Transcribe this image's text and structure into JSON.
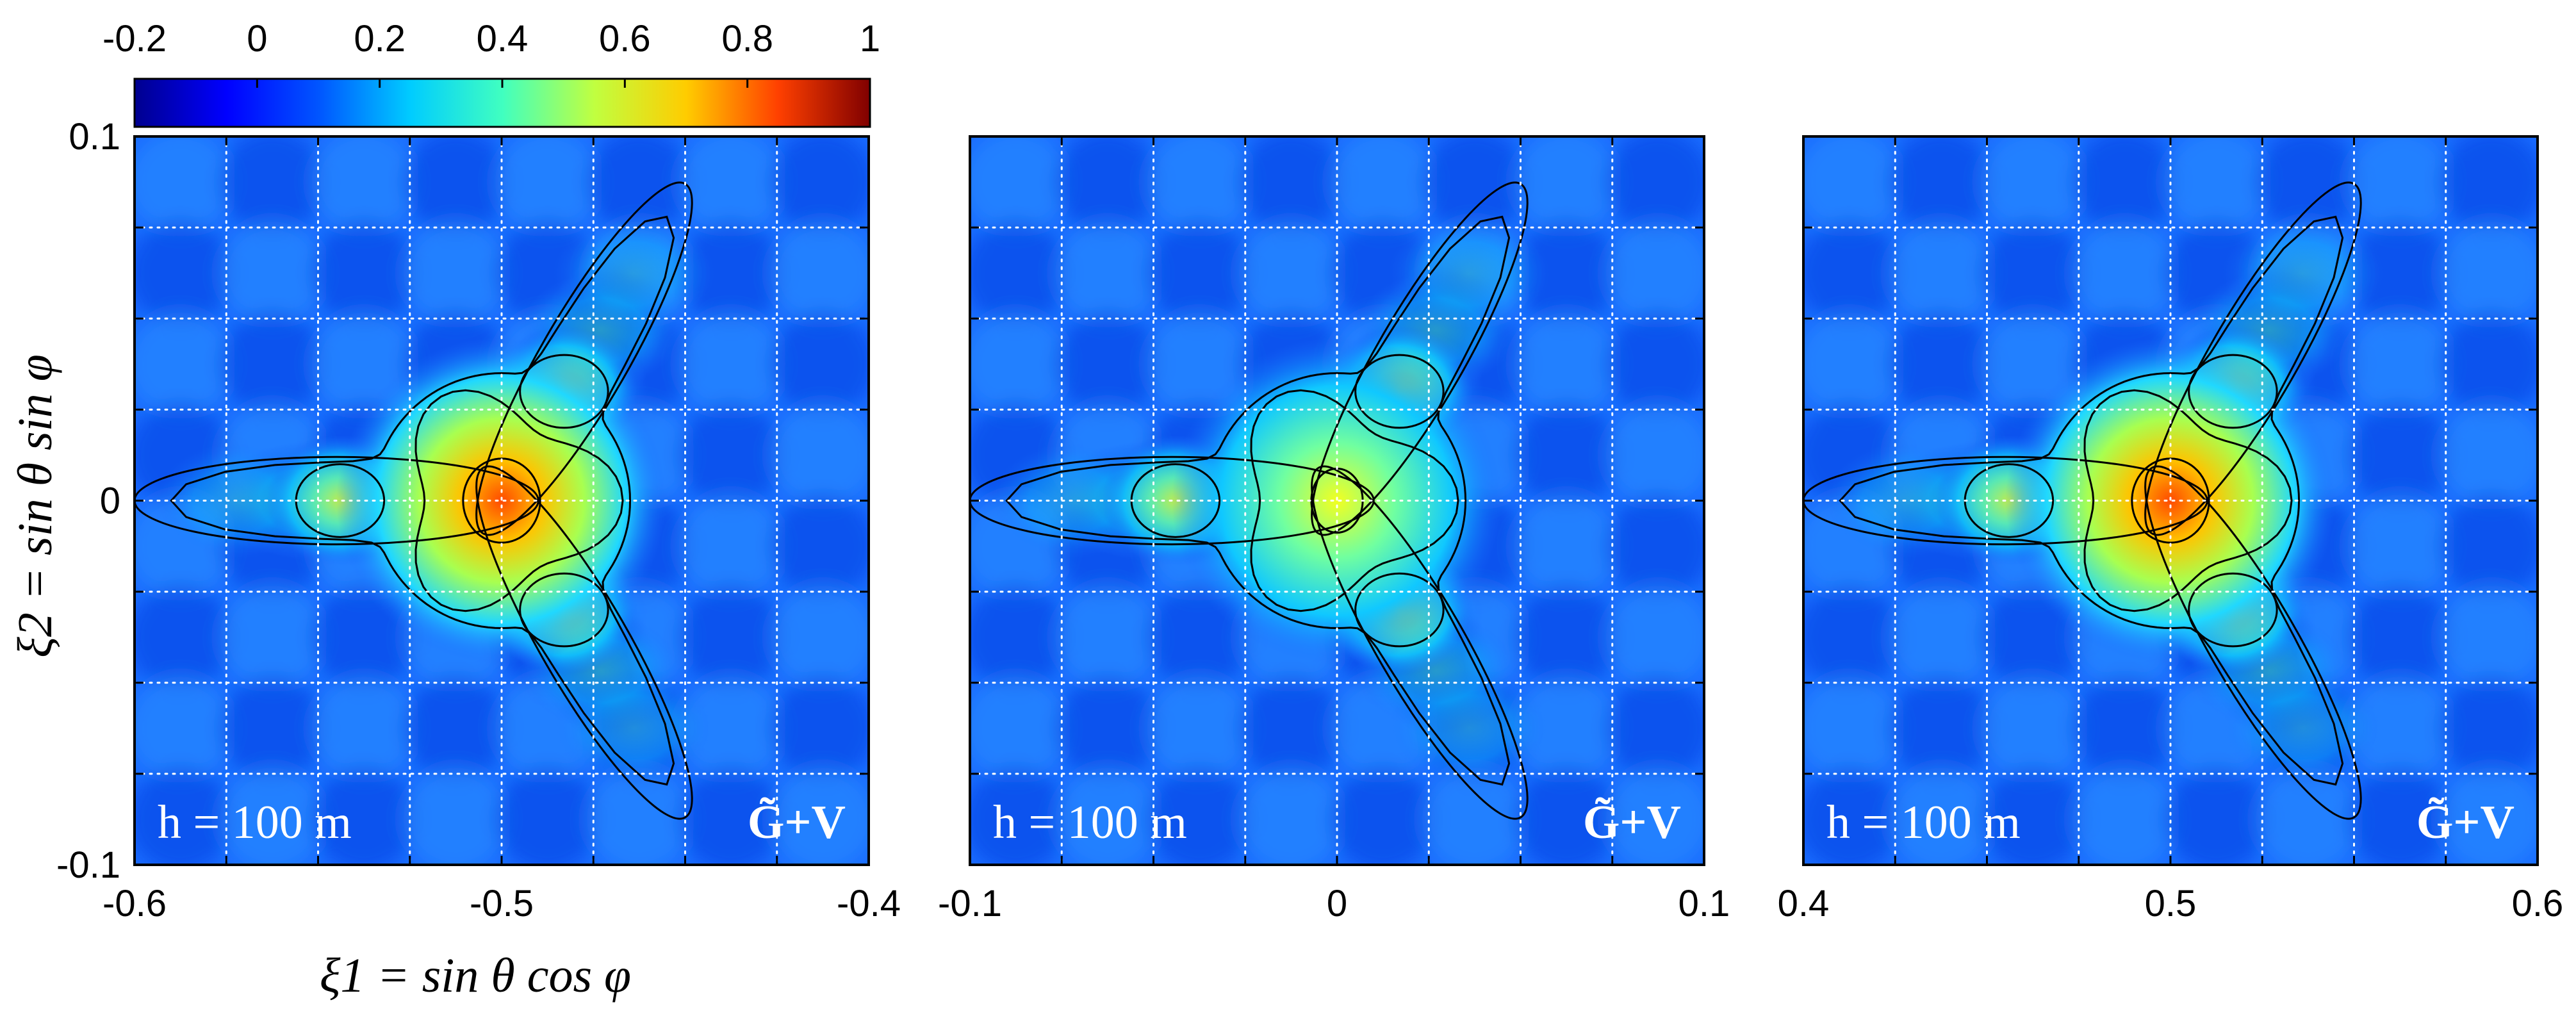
{
  "chart_data": [
    {
      "type": "heatmap",
      "title": "",
      "xlabel": "ξ1 = sin θ cos φ",
      "ylabel": "ξ2 = sin θ sin φ",
      "xlim": [
        -0.6,
        -0.4
      ],
      "ylim": [
        -0.1,
        0.1
      ],
      "xticks": [
        "-0.6",
        "-0.5",
        "-0.4"
      ],
      "yticks": [
        "0.1",
        "0",
        "-0.1"
      ],
      "grid": true,
      "annotation_left": "h = 100 m",
      "annotation_right": "G̃+V",
      "peak": {
        "x": -0.5,
        "y": 0.0,
        "value": 0.7
      }
    },
    {
      "type": "heatmap",
      "title": "",
      "xlim": [
        -0.1,
        0.1
      ],
      "ylim": [
        -0.1,
        0.1
      ],
      "xticks": [
        "-0.1",
        "0",
        "0.1"
      ],
      "grid": true,
      "annotation_left": "h = 100 m",
      "annotation_right": "G̃+V",
      "peak": {
        "x": 0.0,
        "y": 0.0,
        "value": 0.55
      }
    },
    {
      "type": "heatmap",
      "title": "",
      "xlim": [
        0.4,
        0.6
      ],
      "ylim": [
        -0.1,
        0.1
      ],
      "xticks": [
        "0.4",
        "0.5",
        "0.6"
      ],
      "grid": true,
      "annotation_left": "h = 100 m",
      "annotation_right": "G̃+V",
      "peak": {
        "x": 0.5,
        "y": 0.0,
        "value": 0.7
      }
    }
  ],
  "colorbar": {
    "range": [
      -0.2,
      1
    ],
    "ticks": [
      "-0.2",
      "0",
      "0.2",
      "0.4",
      "0.6",
      "0.8",
      "1"
    ],
    "colors": [
      "#00008f",
      "#0000ff",
      "#0080ff",
      "#00ffff",
      "#80ff80",
      "#ffff00",
      "#ff8000",
      "#ff0000",
      "#800000"
    ]
  }
}
